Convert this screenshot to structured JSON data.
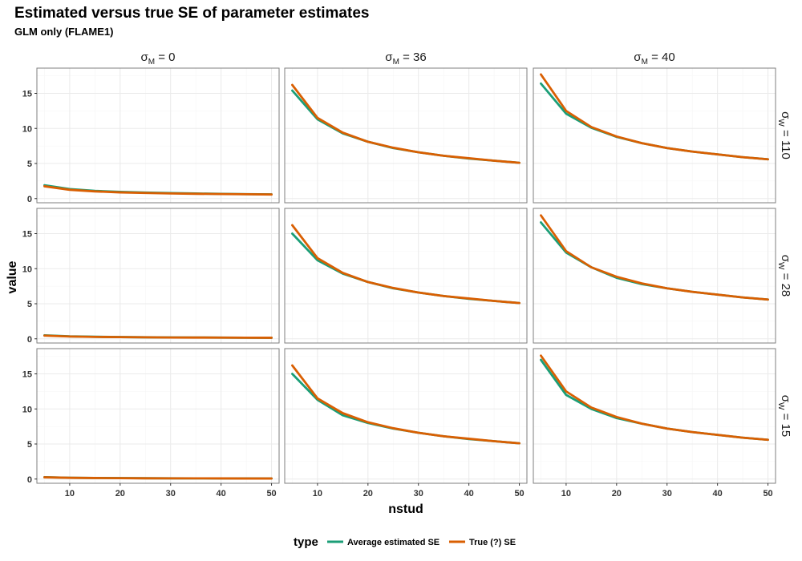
{
  "chart_data": {
    "type": "line",
    "title": "Estimated versus true SE of parameter estimates",
    "subtitle": "GLM only (FLAME1)",
    "xlabel": "nstud",
    "ylabel": "value",
    "x": [
      5,
      10,
      15,
      20,
      25,
      30,
      35,
      40,
      45,
      50
    ],
    "xlim": [
      3.5,
      51.5
    ],
    "ylim": [
      -0.6,
      18.6
    ],
    "xticks": [
      "10",
      "20",
      "30",
      "40",
      "50"
    ],
    "yticks": [
      "0",
      "5",
      "10",
      "15"
    ],
    "grid": true,
    "legend": {
      "title": "type",
      "position": "bottom",
      "entries": [
        "Average estimated SE",
        "True (?) SE"
      ]
    },
    "colors": {
      "avg": "#1b9e77",
      "true": "#d95f02",
      "grid_major": "#ebebeb",
      "grid_minor": "#f5f5f5",
      "panel_border": "#7f7f7f"
    },
    "col_facets": [
      {
        "symbol": "σ",
        "subscript": "M",
        "value": "= 0"
      },
      {
        "symbol": "σ",
        "subscript": "M",
        "value": "= 36"
      },
      {
        "symbol": "σ",
        "subscript": "M",
        "value": "= 40"
      }
    ],
    "row_facets": [
      {
        "symbol": "σ",
        "subscript": "W",
        "value": "= 110"
      },
      {
        "symbol": "σ",
        "subscript": "W",
        "value": "= 28"
      },
      {
        "symbol": "σ",
        "subscript": "W",
        "value": "= 15"
      }
    ],
    "panels": [
      {
        "row": 0,
        "col": 0,
        "series": [
          {
            "name": "Average estimated SE",
            "values": [
              1.9,
              1.35,
              1.1,
              0.95,
              0.85,
              0.78,
              0.72,
              0.67,
              0.63,
              0.6
            ]
          },
          {
            "name": "True (?) SE",
            "values": [
              1.75,
              1.25,
              1.02,
              0.88,
              0.8,
              0.73,
              0.68,
              0.64,
              0.61,
              0.58
            ]
          }
        ]
      },
      {
        "row": 0,
        "col": 1,
        "series": [
          {
            "name": "Average estimated SE",
            "values": [
              15.4,
              11.3,
              9.3,
              8.1,
              7.2,
              6.6,
              6.1,
              5.7,
              5.4,
              5.1
            ]
          },
          {
            "name": "True (?) SE",
            "values": [
              16.2,
              11.5,
              9.4,
              8.1,
              7.25,
              6.6,
              6.1,
              5.75,
              5.4,
              5.1
            ]
          }
        ]
      },
      {
        "row": 0,
        "col": 2,
        "series": [
          {
            "name": "Average estimated SE",
            "values": [
              16.4,
              12.1,
              10.1,
              8.8,
              7.9,
              7.2,
              6.7,
              6.3,
              5.9,
              5.6
            ]
          },
          {
            "name": "True (?) SE",
            "values": [
              17.7,
              12.5,
              10.2,
              8.85,
              7.9,
              7.2,
              6.7,
              6.3,
              5.9,
              5.6
            ]
          }
        ]
      },
      {
        "row": 1,
        "col": 0,
        "series": [
          {
            "name": "Average estimated SE",
            "values": [
              0.5,
              0.35,
              0.29,
              0.25,
              0.22,
              0.2,
              0.19,
              0.17,
              0.16,
              0.15
            ]
          },
          {
            "name": "True (?) SE",
            "values": [
              0.46,
              0.33,
              0.27,
              0.24,
              0.21,
              0.19,
              0.18,
              0.17,
              0.16,
              0.15
            ]
          }
        ]
      },
      {
        "row": 1,
        "col": 1,
        "series": [
          {
            "name": "Average estimated SE",
            "values": [
              15.0,
              11.2,
              9.3,
              8.1,
              7.2,
              6.6,
              6.1,
              5.7,
              5.4,
              5.1
            ]
          },
          {
            "name": "True (?) SE",
            "values": [
              16.2,
              11.5,
              9.4,
              8.1,
              7.25,
              6.6,
              6.1,
              5.75,
              5.4,
              5.1
            ]
          }
        ]
      },
      {
        "row": 1,
        "col": 2,
        "series": [
          {
            "name": "Average estimated SE",
            "values": [
              16.6,
              12.3,
              10.2,
              8.7,
              7.8,
              7.2,
              6.7,
              6.3,
              5.9,
              5.6
            ]
          },
          {
            "name": "True (?) SE",
            "values": [
              17.6,
              12.5,
              10.2,
              8.85,
              7.9,
              7.2,
              6.7,
              6.3,
              5.9,
              5.6
            ]
          }
        ]
      },
      {
        "row": 2,
        "col": 0,
        "series": [
          {
            "name": "Average estimated SE",
            "values": [
              0.27,
              0.19,
              0.16,
              0.14,
              0.12,
              0.11,
              0.1,
              0.09,
              0.09,
              0.08
            ]
          },
          {
            "name": "True (?) SE",
            "values": [
              0.25,
              0.18,
              0.15,
              0.13,
              0.11,
              0.1,
              0.1,
              0.09,
              0.08,
              0.08
            ]
          }
        ]
      },
      {
        "row": 2,
        "col": 1,
        "series": [
          {
            "name": "Average estimated SE",
            "values": [
              15.0,
              11.3,
              9.1,
              8.0,
              7.2,
              6.6,
              6.1,
              5.7,
              5.4,
              5.1
            ]
          },
          {
            "name": "True (?) SE",
            "values": [
              16.2,
              11.5,
              9.4,
              8.1,
              7.25,
              6.6,
              6.1,
              5.75,
              5.4,
              5.1
            ]
          }
        ]
      },
      {
        "row": 2,
        "col": 2,
        "series": [
          {
            "name": "Average estimated SE",
            "values": [
              17.0,
              12.0,
              10.0,
              8.7,
              7.9,
              7.2,
              6.7,
              6.3,
              5.9,
              5.6
            ]
          },
          {
            "name": "True (?) SE",
            "values": [
              17.6,
              12.5,
              10.2,
              8.85,
              7.9,
              7.2,
              6.7,
              6.3,
              5.9,
              5.6
            ]
          }
        ]
      }
    ]
  }
}
